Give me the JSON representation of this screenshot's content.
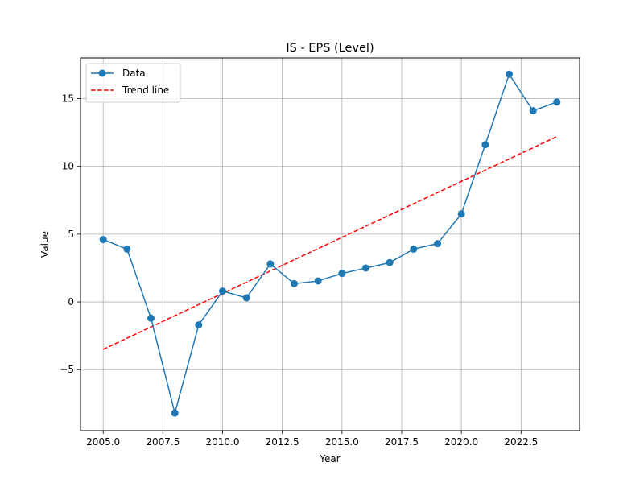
{
  "chart_data": {
    "type": "line",
    "title": "IS - EPS (Level)",
    "xlabel": "Year",
    "ylabel": "Value",
    "xlim": [
      2004.05,
      2024.95
    ],
    "ylim": [
      -9.5,
      18.0
    ],
    "xticks": [
      2005.0,
      2007.5,
      2010.0,
      2012.5,
      2015.0,
      2017.5,
      2020.0,
      2022.5
    ],
    "xtick_labels": [
      "2005.0",
      "2007.5",
      "2010.0",
      "2012.5",
      "2015.0",
      "2017.5",
      "2020.0",
      "2022.5"
    ],
    "yticks": [
      -5,
      0,
      5,
      10,
      15
    ],
    "ytick_labels": [
      "−5",
      "0",
      "5",
      "10",
      "15"
    ],
    "grid": true,
    "legend_position": "top-left",
    "series": [
      {
        "name": "Data",
        "style": "line-marker",
        "color": "#1f77b4",
        "x": [
          2005,
          2006,
          2007,
          2008,
          2009,
          2010,
          2011,
          2012,
          2013,
          2014,
          2015,
          2016,
          2017,
          2018,
          2019,
          2020,
          2021,
          2022,
          2023,
          2024
        ],
        "values": [
          4.6,
          3.9,
          -1.2,
          -8.2,
          -1.7,
          0.8,
          0.3,
          2.8,
          1.35,
          1.55,
          2.1,
          2.5,
          2.9,
          3.9,
          4.3,
          6.5,
          11.6,
          16.8,
          14.1,
          14.75
        ]
      },
      {
        "name": "Trend line",
        "style": "dashed",
        "color": "#ff0000",
        "x": [
          2005,
          2024
        ],
        "values": [
          -3.5,
          12.2
        ]
      }
    ]
  }
}
